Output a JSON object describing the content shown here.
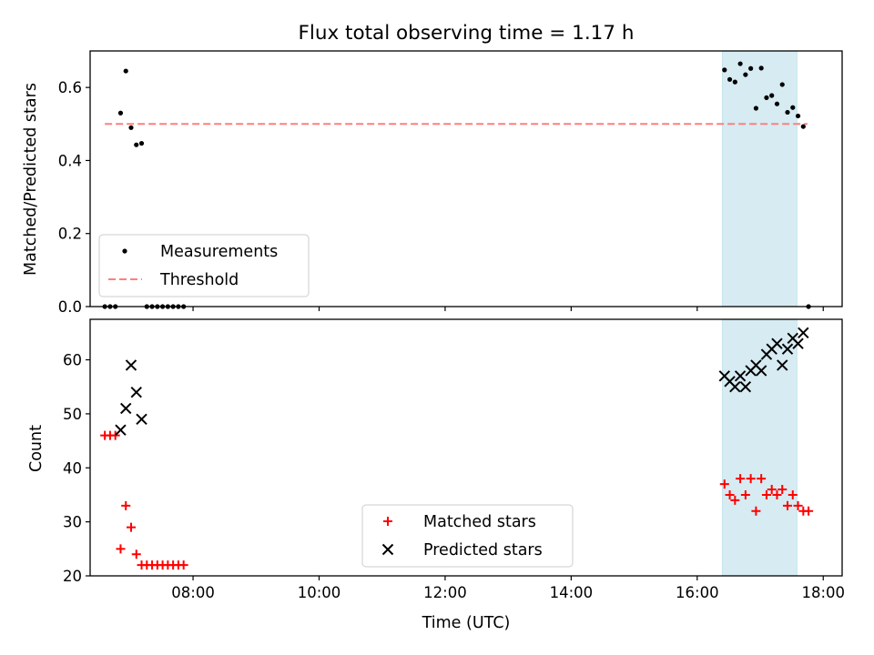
{
  "figure_title": "Flux total observing time = 1.17 h",
  "chart_data": [
    {
      "type": "scatter",
      "ylabel": "Matched/Predicted stars",
      "xlabel": "",
      "xlim": [
        "06:22",
        "18:18"
      ],
      "ylim": [
        0,
        0.7
      ],
      "x_ticks": [
        "08:00",
        "10:00",
        "12:00",
        "14:00",
        "16:00",
        "18:00"
      ],
      "y_ticks": [
        "0.0",
        "0.2",
        "0.4",
        "0.6"
      ],
      "highlight_span": {
        "from": "16:24",
        "to": "17:35",
        "color": "#add8e6"
      },
      "threshold": {
        "name": "Threshold",
        "value": 0.5,
        "from": "06:36",
        "to": "17:45",
        "color": "#ff7f7f"
      },
      "legend_placement": "lower-left",
      "series": [
        {
          "name": "Measurements",
          "color": "#000000",
          "marker": "dot",
          "points": [
            [
              "06:36",
              0.0
            ],
            [
              "06:41",
              0.0
            ],
            [
              "06:46",
              0.0
            ],
            [
              "06:51",
              0.53
            ],
            [
              "06:56",
              0.645
            ],
            [
              "07:01",
              0.49
            ],
            [
              "07:06",
              0.443
            ],
            [
              "07:11",
              0.447
            ],
            [
              "07:16",
              0.0
            ],
            [
              "07:21",
              0.0
            ],
            [
              "07:26",
              0.0
            ],
            [
              "07:31",
              0.0
            ],
            [
              "07:36",
              0.0
            ],
            [
              "07:41",
              0.0
            ],
            [
              "07:46",
              0.0
            ],
            [
              "07:51",
              0.0
            ],
            [
              "16:26",
              0.648
            ],
            [
              "16:31",
              0.622
            ],
            [
              "16:36",
              0.615
            ],
            [
              "16:41",
              0.665
            ],
            [
              "16:46",
              0.635
            ],
            [
              "16:51",
              0.652
            ],
            [
              "16:56",
              0.543
            ],
            [
              "17:01",
              0.653
            ],
            [
              "17:06",
              0.572
            ],
            [
              "17:11",
              0.578
            ],
            [
              "17:16",
              0.555
            ],
            [
              "17:21",
              0.608
            ],
            [
              "17:26",
              0.532
            ],
            [
              "17:31",
              0.545
            ],
            [
              "17:36",
              0.522
            ],
            [
              "17:41",
              0.493
            ],
            [
              "17:46",
              0.0
            ]
          ]
        }
      ]
    },
    {
      "type": "scatter",
      "ylabel": "Count",
      "xlabel": "Time (UTC)",
      "xlim": [
        "06:22",
        "18:18"
      ],
      "ylim": [
        20,
        67.5
      ],
      "x_ticks": [
        "08:00",
        "10:00",
        "12:00",
        "14:00",
        "16:00",
        "18:00"
      ],
      "y_ticks": [
        "20",
        "30",
        "40",
        "50",
        "60"
      ],
      "highlight_span": {
        "from": "16:24",
        "to": "17:35",
        "color": "#add8e6"
      },
      "legend_placement": "lower-center",
      "series": [
        {
          "name": "Matched stars",
          "color": "#ff0000",
          "marker": "plus",
          "points": [
            [
              "06:36",
              46
            ],
            [
              "06:41",
              46
            ],
            [
              "06:46",
              46
            ],
            [
              "06:51",
              25
            ],
            [
              "06:56",
              33
            ],
            [
              "07:01",
              29
            ],
            [
              "07:06",
              24
            ],
            [
              "07:11",
              22
            ],
            [
              "07:16",
              22
            ],
            [
              "07:21",
              22
            ],
            [
              "07:26",
              22
            ],
            [
              "07:31",
              22
            ],
            [
              "07:36",
              22
            ],
            [
              "07:41",
              22
            ],
            [
              "07:46",
              22
            ],
            [
              "07:51",
              22
            ],
            [
              "16:26",
              37
            ],
            [
              "16:31",
              35
            ],
            [
              "16:36",
              34
            ],
            [
              "16:41",
              38
            ],
            [
              "16:46",
              35
            ],
            [
              "16:51",
              38
            ],
            [
              "16:56",
              32
            ],
            [
              "17:01",
              38
            ],
            [
              "17:06",
              35
            ],
            [
              "17:11",
              36
            ],
            [
              "17:16",
              35
            ],
            [
              "17:21",
              36
            ],
            [
              "17:26",
              33
            ],
            [
              "17:31",
              35
            ],
            [
              "17:36",
              33
            ],
            [
              "17:41",
              32
            ],
            [
              "17:46",
              32
            ]
          ]
        },
        {
          "name": "Predicted stars",
          "color": "#000000",
          "marker": "x",
          "points": [
            [
              "06:51",
              47
            ],
            [
              "06:56",
              51
            ],
            [
              "07:01",
              59
            ],
            [
              "07:06",
              54
            ],
            [
              "07:11",
              49
            ],
            [
              "16:26",
              57
            ],
            [
              "16:31",
              56
            ],
            [
              "16:36",
              55
            ],
            [
              "16:41",
              57
            ],
            [
              "16:46",
              55
            ],
            [
              "16:51",
              58
            ],
            [
              "16:56",
              59
            ],
            [
              "17:01",
              58
            ],
            [
              "17:06",
              61
            ],
            [
              "17:11",
              62
            ],
            [
              "17:16",
              63
            ],
            [
              "17:21",
              59
            ],
            [
              "17:26",
              62
            ],
            [
              "17:31",
              64
            ],
            [
              "17:36",
              63
            ],
            [
              "17:41",
              65
            ]
          ]
        }
      ]
    }
  ]
}
